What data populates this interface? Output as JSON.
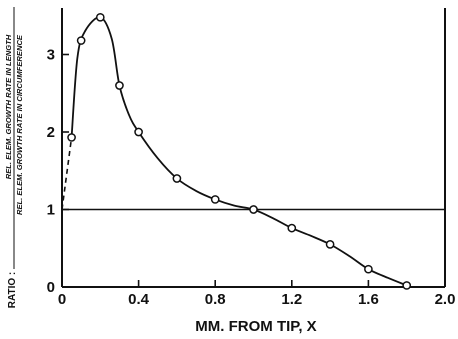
{
  "chart_data": {
    "type": "line",
    "xlabel": "MM. FROM TIP, X",
    "ylabel": {
      "prefix": "RATIO :",
      "numerator": "REL. ELEM. GROWTH RATE IN LENGTH",
      "denominator": "REL. ELEM. GROWTH RATE IN CIRCUMFERENCE"
    },
    "xlim": [
      0,
      2.0
    ],
    "ylim": [
      0,
      3.6
    ],
    "x_ticks": [
      0,
      0.4,
      0.8,
      1.2,
      1.6,
      2.0
    ],
    "x_tick_labels": [
      "0",
      "0.4",
      "0.8",
      "1.2",
      "1.6",
      "2.0"
    ],
    "y_ticks": [
      0,
      1,
      2,
      3
    ],
    "y_tick_labels": [
      "0",
      "1",
      "2",
      "3"
    ],
    "reference_line": {
      "y": 1
    },
    "series": [
      {
        "points": [
          {
            "x": 0.05,
            "y": 1.93
          },
          {
            "x": 0.1,
            "y": 3.18
          },
          {
            "x": 0.2,
            "y": 3.48
          },
          {
            "x": 0.3,
            "y": 2.6
          },
          {
            "x": 0.4,
            "y": 2.0
          },
          {
            "x": 0.6,
            "y": 1.4
          },
          {
            "x": 0.8,
            "y": 1.13
          },
          {
            "x": 1.0,
            "y": 1.0
          },
          {
            "x": 1.2,
            "y": 0.76
          },
          {
            "x": 1.4,
            "y": 0.55
          },
          {
            "x": 1.6,
            "y": 0.23
          },
          {
            "x": 1.8,
            "y": 0.02
          }
        ],
        "curve": [
          {
            "x": 0.05,
            "y": 1.93
          },
          {
            "x": 0.08,
            "y": 2.95
          },
          {
            "x": 0.12,
            "y": 3.3
          },
          {
            "x": 0.2,
            "y": 3.48
          },
          {
            "x": 0.26,
            "y": 3.2
          },
          {
            "x": 0.3,
            "y": 2.6
          },
          {
            "x": 0.35,
            "y": 2.22
          },
          {
            "x": 0.4,
            "y": 2.0
          },
          {
            "x": 0.5,
            "y": 1.66
          },
          {
            "x": 0.6,
            "y": 1.4
          },
          {
            "x": 0.7,
            "y": 1.24
          },
          {
            "x": 0.8,
            "y": 1.13
          },
          {
            "x": 0.9,
            "y": 1.05
          },
          {
            "x": 1.0,
            "y": 1.0
          },
          {
            "x": 1.1,
            "y": 0.89
          },
          {
            "x": 1.2,
            "y": 0.76
          },
          {
            "x": 1.3,
            "y": 0.66
          },
          {
            "x": 1.4,
            "y": 0.55
          },
          {
            "x": 1.5,
            "y": 0.4
          },
          {
            "x": 1.6,
            "y": 0.23
          },
          {
            "x": 1.7,
            "y": 0.12
          },
          {
            "x": 1.8,
            "y": 0.02
          }
        ],
        "extrapolation": [
          {
            "x": 0.0,
            "y": 1.0
          },
          {
            "x": 0.05,
            "y": 1.93
          }
        ]
      }
    ],
    "grid": false,
    "colors": {
      "ink": "#111111",
      "background": "#ffffff"
    }
  }
}
